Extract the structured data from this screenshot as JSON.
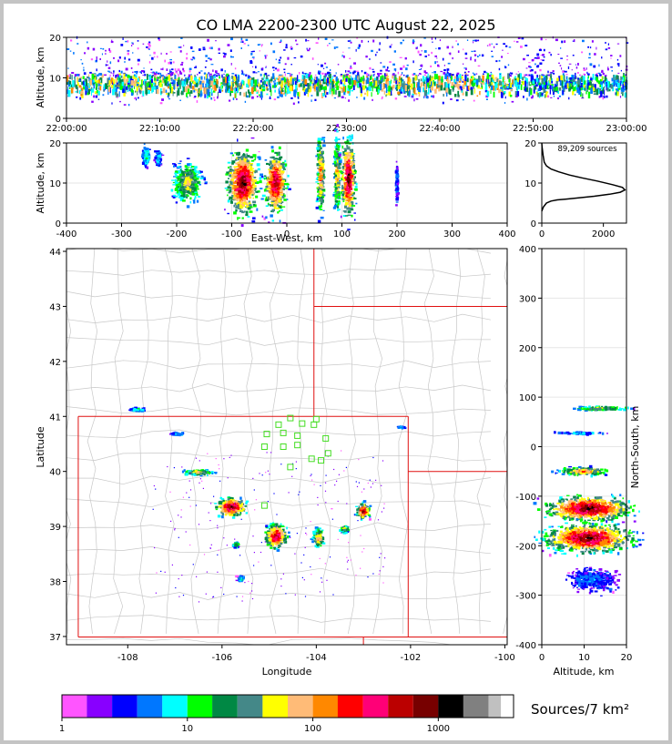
{
  "chart_data": [
    {
      "type": "heatmap",
      "panel": "altitude-vs-time",
      "title": "CO LMA 2200-2300 UTC August 22, 2025",
      "xlabel": "",
      "ylabel": "Altitude, km",
      "x_ticks": [
        "22:00:00",
        "22:10:00",
        "22:20:00",
        "22:30:00",
        "22:40:00",
        "22:50:00",
        "23:00:00"
      ],
      "xlim": [
        0,
        60
      ],
      "ylim": [
        0,
        20
      ],
      "y_ticks": [
        0,
        10,
        20
      ],
      "band_km": [
        3,
        19
      ],
      "core_km": [
        6,
        12
      ]
    },
    {
      "type": "heatmap",
      "panel": "altitude-vs-east-west",
      "xlabel": "East-West, km",
      "ylabel": "Altitude, km",
      "xlim": [
        -400,
        400
      ],
      "x_ticks": [
        -400,
        -300,
        -200,
        -100,
        0,
        100,
        200,
        300,
        400
      ],
      "ylim": [
        0,
        20
      ],
      "y_ticks": [
        0,
        10,
        20
      ],
      "clusters": [
        {
          "x": -255,
          "z": 17,
          "w": 12,
          "h": 5,
          "level": 4
        },
        {
          "x": -233,
          "z": 16,
          "w": 10,
          "h": 4,
          "level": 3
        },
        {
          "x": -180,
          "z": 10,
          "w": 45,
          "h": 9,
          "level": 8
        },
        {
          "x": -80,
          "z": 10,
          "w": 50,
          "h": 14,
          "level": 14
        },
        {
          "x": -20,
          "z": 10,
          "w": 35,
          "h": 14,
          "level": 13
        },
        {
          "x": 62,
          "z": 12,
          "w": 12,
          "h": 17,
          "level": 10
        },
        {
          "x": 92,
          "z": 12,
          "w": 10,
          "h": 17,
          "level": 9
        },
        {
          "x": 112,
          "z": 11,
          "w": 22,
          "h": 17,
          "level": 14
        },
        {
          "x": 200,
          "z": 10,
          "w": 3,
          "h": 10,
          "level": 2
        }
      ]
    },
    {
      "type": "line",
      "panel": "altitude-histogram",
      "annotation": "89,209 sources",
      "xlim": [
        0,
        2750
      ],
      "x_ticks": [
        0,
        2000
      ],
      "ylim": [
        0,
        20
      ],
      "y_ticks": [
        0,
        10,
        20
      ],
      "x": [
        0,
        50,
        150,
        300,
        500,
        800,
        1200,
        1700,
        2200,
        2550,
        2700,
        2620,
        2300,
        1800,
        1300,
        900,
        550,
        300,
        150,
        80,
        40,
        10,
        0
      ],
      "y": [
        3,
        4,
        5,
        5.5,
        5.8,
        6,
        6.3,
        6.7,
        7.2,
        7.7,
        8.3,
        8.9,
        9.6,
        10.5,
        11.3,
        12,
        12.8,
        13.5,
        14.3,
        15.2,
        17,
        19,
        20
      ]
    },
    {
      "type": "heatmap",
      "panel": "plan-view-map",
      "xlabel": "Longitude",
      "ylabel": "Latitude",
      "xlim": [
        -109.3,
        -99.95
      ],
      "ylim": [
        36.85,
        44.05
      ],
      "x_ticks": [
        -108,
        -106,
        -104,
        -102,
        -100
      ],
      "y_ticks": [
        37,
        38,
        39,
        40,
        41,
        42,
        43,
        44
      ],
      "clusters": [
        {
          "lon": -107.8,
          "lat": 41.12,
          "w": 0.3,
          "h": 0.05,
          "level": 4
        },
        {
          "lon": -106.95,
          "lat": 40.68,
          "w": 0.25,
          "h": 0.05,
          "level": 3
        },
        {
          "lon": -106.5,
          "lat": 39.98,
          "w": 0.6,
          "h": 0.1,
          "level": 8
        },
        {
          "lon": -105.8,
          "lat": 39.35,
          "w": 0.55,
          "h": 0.3,
          "level": 14
        },
        {
          "lon": -104.85,
          "lat": 38.82,
          "w": 0.4,
          "h": 0.4,
          "level": 13
        },
        {
          "lon": -103.95,
          "lat": 38.78,
          "w": 0.2,
          "h": 0.3,
          "level": 10
        },
        {
          "lon": -103.4,
          "lat": 38.95,
          "w": 0.15,
          "h": 0.12,
          "level": 8
        },
        {
          "lon": -103.0,
          "lat": 39.28,
          "w": 0.25,
          "h": 0.25,
          "level": 13
        },
        {
          "lon": -105.6,
          "lat": 38.05,
          "w": 0.12,
          "h": 0.1,
          "level": 4
        },
        {
          "lon": -105.7,
          "lat": 38.66,
          "w": 0.12,
          "h": 0.08,
          "level": 6
        },
        {
          "lon": -102.2,
          "lat": 40.8,
          "w": 0.15,
          "h": 0.03,
          "level": 3
        }
      ],
      "stations": [
        [
          -104.55,
          40.97
        ],
        [
          -104.8,
          40.85
        ],
        [
          -104.3,
          40.87
        ],
        [
          -104.0,
          40.95
        ],
        [
          -104.05,
          40.85
        ],
        [
          -104.7,
          40.7
        ],
        [
          -105.05,
          40.68
        ],
        [
          -104.4,
          40.65
        ],
        [
          -103.8,
          40.6
        ],
        [
          -105.1,
          40.45
        ],
        [
          -104.7,
          40.45
        ],
        [
          -104.4,
          40.48
        ],
        [
          -103.75,
          40.33
        ],
        [
          -104.1,
          40.23
        ],
        [
          -103.9,
          40.2
        ],
        [
          -104.55,
          40.08
        ],
        [
          -105.1,
          39.38
        ]
      ]
    },
    {
      "type": "heatmap",
      "panel": "north-south-vs-altitude",
      "xlabel": "Altitude, km",
      "ylabel": "North-South, km",
      "xlim": [
        0,
        20
      ],
      "x_ticks": [
        0,
        10,
        20
      ],
      "ylim": [
        -400,
        400
      ],
      "y_ticks": [
        -400,
        -300,
        -200,
        -100,
        0,
        100,
        200,
        300,
        400
      ],
      "clusters": [
        {
          "z": 14,
          "y": 77,
          "w": 12,
          "h": 8,
          "level": 7
        },
        {
          "z": 9,
          "y": 27,
          "w": 10,
          "h": 4,
          "level": 3
        },
        {
          "z": 10,
          "y": -50,
          "w": 10,
          "h": 15,
          "level": 10
        },
        {
          "z": 11,
          "y": -125,
          "w": 18,
          "h": 45,
          "level": 14
        },
        {
          "z": 11,
          "y": -185,
          "w": 18,
          "h": 50,
          "level": 14
        },
        {
          "z": 12,
          "y": -270,
          "w": 10,
          "h": 40,
          "level": 2
        }
      ]
    },
    {
      "type": "colorbar",
      "label": "Sources/7 km²",
      "tick_labels": [
        "1",
        "10",
        "100",
        "1000"
      ],
      "tick_values": [
        1,
        10,
        100,
        1000
      ],
      "range": [
        1,
        3000
      ],
      "colors": [
        "#ff55ff",
        "#8800ff",
        "#0000ff",
        "#0077ff",
        "#00ffff",
        "#00ff00",
        "#008844",
        "#448888",
        "#ffff00",
        "#ffbb77",
        "#ff8800",
        "#ff0000",
        "#ff0077",
        "#bb0000",
        "#770000",
        "#000000",
        "#808080",
        "#c0c0c0",
        "#ffffff"
      ],
      "bounds": [
        1,
        1.58,
        2.51,
        3.98,
        6.31,
        10,
        15.8,
        25.1,
        39.8,
        63.1,
        100,
        158,
        251,
        398,
        631,
        1000,
        1585,
        2512,
        3162,
        3981
      ]
    }
  ]
}
